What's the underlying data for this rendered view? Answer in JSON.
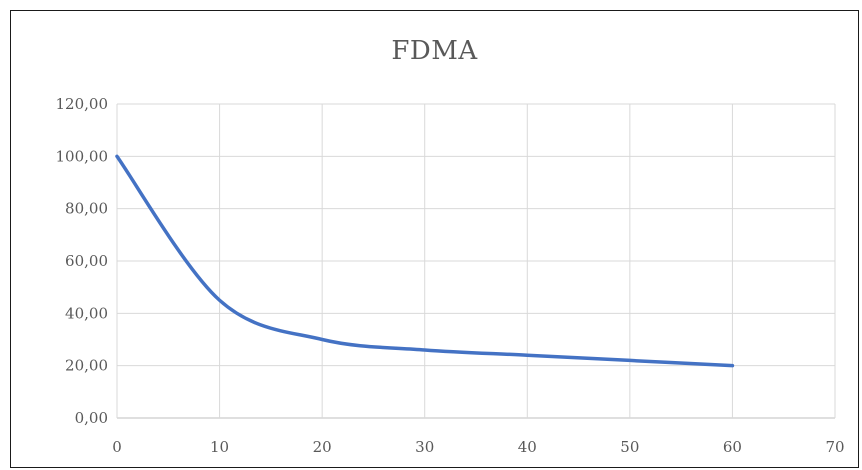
{
  "chart_data": {
    "type": "line",
    "title": "FDMA",
    "xlabel": "",
    "ylabel": "",
    "xlim": [
      0,
      70
    ],
    "ylim": [
      0,
      120
    ],
    "x_ticks": [
      "0",
      "10",
      "20",
      "30",
      "40",
      "50",
      "60",
      "70"
    ],
    "y_ticks": [
      "0,00",
      "20,00",
      "40,00",
      "60,00",
      "80,00",
      "100,00",
      "120,00"
    ],
    "grid": true,
    "smooth": true,
    "series": [
      {
        "color": "#4472c4",
        "x": [
          0,
          10,
          20,
          30,
          40,
          50,
          60
        ],
        "y": [
          100,
          45,
          30,
          26,
          24,
          22,
          20
        ]
      }
    ]
  }
}
